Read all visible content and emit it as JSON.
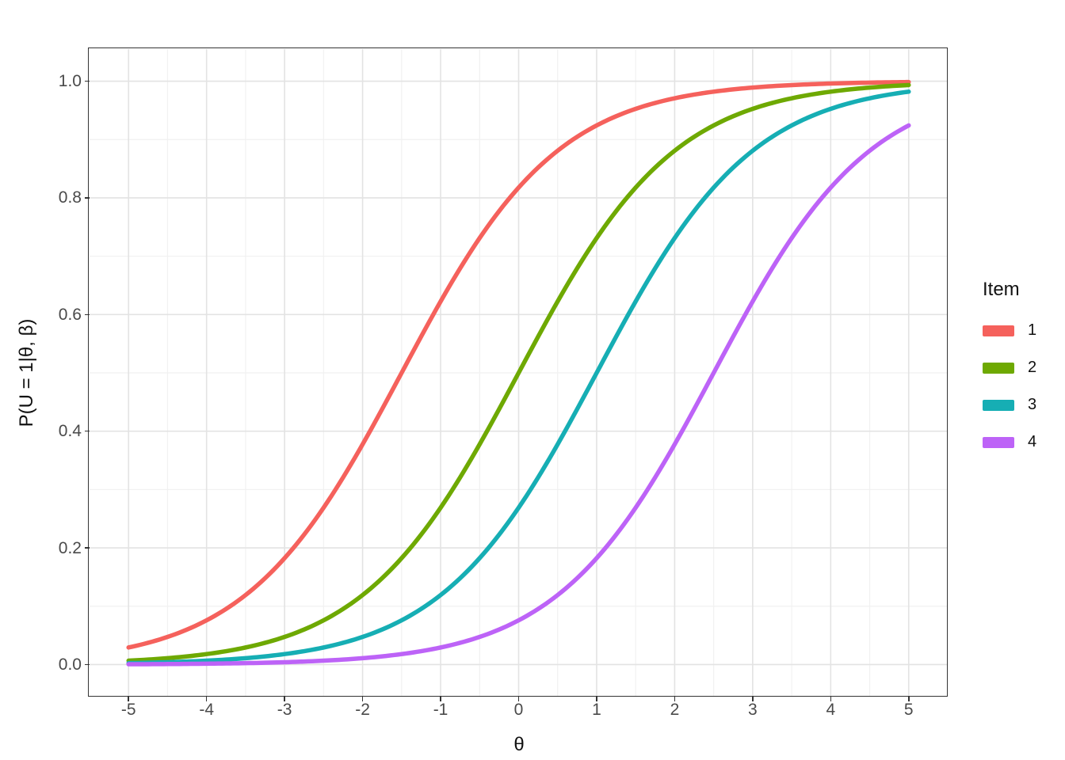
{
  "chart_data": {
    "type": "line",
    "subtype": "item-characteristic-curves",
    "title": "",
    "xlabel": "θ",
    "ylabel": "P(U = 1|θ, β)",
    "xlim": [
      -5,
      5
    ],
    "ylim": [
      0,
      1
    ],
    "x_range_expanded": [
      -5.5,
      5.5
    ],
    "y_range_expanded": [
      -0.055,
      1.055
    ],
    "x_major_ticks": [
      -5,
      -4,
      -3,
      -2,
      -1,
      0,
      1,
      2,
      3,
      4,
      5
    ],
    "x_tick_labels": [
      "-5",
      "-4",
      "-3",
      "-2",
      "-1",
      "0",
      "1",
      "2",
      "3",
      "4",
      "5"
    ],
    "x_minor_ticks": [
      -4.5,
      -3.5,
      -2.5,
      -1.5,
      -0.5,
      0.5,
      1.5,
      2.5,
      3.5,
      4.5
    ],
    "y_major_ticks": [
      0,
      0.2,
      0.4,
      0.6,
      0.8,
      1
    ],
    "y_tick_labels": [
      "0.0",
      "0.2",
      "0.4",
      "0.6",
      "0.8",
      "1.0"
    ],
    "y_minor_ticks": [
      0.1,
      0.3,
      0.5,
      0.7,
      0.9
    ],
    "grid": true,
    "legend": {
      "title": "Item",
      "position": "right"
    },
    "model": "P(U=1|theta,beta) = 1 / (1 + exp(-(theta - beta)))",
    "curve_step": 0.05,
    "sample_x": [
      -5,
      -4,
      -3,
      -2,
      -1,
      0,
      1,
      2,
      3,
      4,
      5
    ],
    "series": [
      {
        "name": "1",
        "beta": -1.5,
        "color": "#f5615c",
        "p_values": [
          0.029,
          0.076,
          0.182,
          0.378,
          0.622,
          0.818,
          0.924,
          0.971,
          0.989,
          0.996,
          0.999
        ]
      },
      {
        "name": "2",
        "beta": 0,
        "color": "#6ea902",
        "p_values": [
          0.007,
          0.018,
          0.047,
          0.119,
          0.269,
          0.5,
          0.731,
          0.881,
          0.953,
          0.982,
          0.993
        ]
      },
      {
        "name": "3",
        "beta": 1,
        "color": "#16aeb4",
        "p_values": [
          0.002,
          0.007,
          0.018,
          0.047,
          0.119,
          0.269,
          0.5,
          0.731,
          0.881,
          0.953,
          0.982
        ]
      },
      {
        "name": "4",
        "beta": 2.5,
        "color": "#bd63f7",
        "p_values": [
          0.001,
          0.002,
          0.004,
          0.011,
          0.029,
          0.076,
          0.182,
          0.378,
          0.622,
          0.818,
          0.924
        ]
      }
    ]
  },
  "style": {
    "background": "#ffffff",
    "panel_background": "#ffffff",
    "panel_border": "#343434",
    "major_grid": "#e3e3e3",
    "minor_grid": "#f1f1f1",
    "tick_color": "#343434",
    "tick_label_color": "#4a4a4a",
    "title_color": "#111111",
    "line_width": 5.5
  }
}
